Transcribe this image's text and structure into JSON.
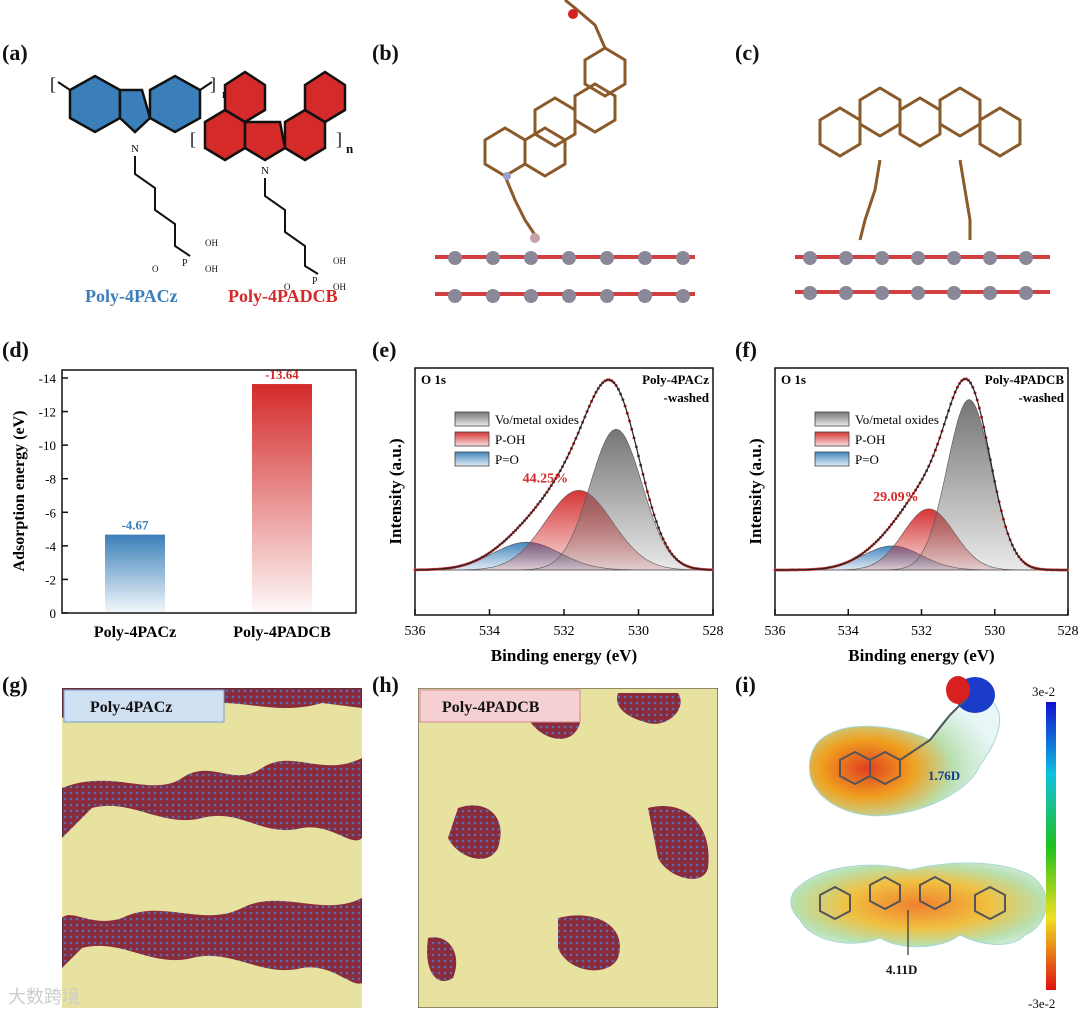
{
  "panel_labels": {
    "a": "(a)",
    "b": "(b)",
    "c": "(c)",
    "d": "(d)",
    "e": "(e)",
    "f": "(f)",
    "g": "(g)",
    "h": "(h)",
    "i": "(i)"
  },
  "panel_a": {
    "left_name": "Poly-4PACz",
    "right_name": "Poly-4PADCB",
    "n": "n",
    "oh": "OH",
    "o": "O",
    "p": "P",
    "nitrogen": "N",
    "left_color": "#3a7fb9",
    "right_color": "#d42a2a"
  },
  "panel_g": {
    "tag": "Poly-4PACz"
  },
  "panel_h": {
    "tag": "Poly-4PADCB"
  },
  "panel_i": {
    "dipole_top": "1.76D",
    "dipole_bottom": "4.11D",
    "scale_max": "3e-2",
    "scale_min": "-3e-2"
  },
  "watermark": "大数跨境",
  "chart_data": [
    {
      "id": "d",
      "type": "bar",
      "categories": [
        "Poly-4PACz",
        "Poly-4PADCB"
      ],
      "values": [
        -4.67,
        -13.64
      ],
      "value_labels": [
        "-4.67",
        "-13.64"
      ],
      "ylabel": "Adsorption energy (eV)",
      "ylim": [
        0,
        -14
      ],
      "yticks": [
        "0",
        "-2",
        "-4",
        "-6",
        "-8",
        "-10",
        "-12",
        "-14"
      ],
      "colors": [
        "#3a7fb9",
        "#d42a2a"
      ]
    },
    {
      "id": "e",
      "type": "line",
      "title": "O 1s",
      "sample": "Poly-4PACz",
      "sample2": "-washed",
      "xlabel": "Binding energy (eV)",
      "ylabel": "Intensity (a.u.)",
      "xlim": [
        536,
        528
      ],
      "xticks": [
        "536",
        "534",
        "532",
        "530",
        "528"
      ],
      "legend": [
        "Vo/metal oxides",
        "P-OH",
        "P=O"
      ],
      "annotation": "44.25%",
      "peaks": [
        {
          "name": "Vo/metal oxides",
          "center": 530.6,
          "height": 0.76,
          "width": 0.7
        },
        {
          "name": "P-OH",
          "center": 531.6,
          "height": 0.43,
          "width": 0.9
        },
        {
          "name": "P=O",
          "center": 533.0,
          "height": 0.15,
          "width": 0.9
        }
      ]
    },
    {
      "id": "f",
      "type": "line",
      "title": "O 1s",
      "sample": "Poly-4PADCB",
      "sample2": "-washed",
      "xlabel": "Binding energy (eV)",
      "ylabel": "Intensity (a.u.)",
      "xlim": [
        536,
        528
      ],
      "xticks": [
        "536",
        "534",
        "532",
        "530",
        "528"
      ],
      "legend": [
        "Vo/metal oxides",
        "P-OH",
        "P=O"
      ],
      "annotation": "29.09%",
      "peaks": [
        {
          "name": "Vo/metal oxides",
          "center": 530.7,
          "height": 0.92,
          "width": 0.6
        },
        {
          "name": "P-OH",
          "center": 531.8,
          "height": 0.33,
          "width": 0.7
        },
        {
          "name": "P=O",
          "center": 532.8,
          "height": 0.13,
          "width": 0.8
        }
      ]
    }
  ]
}
